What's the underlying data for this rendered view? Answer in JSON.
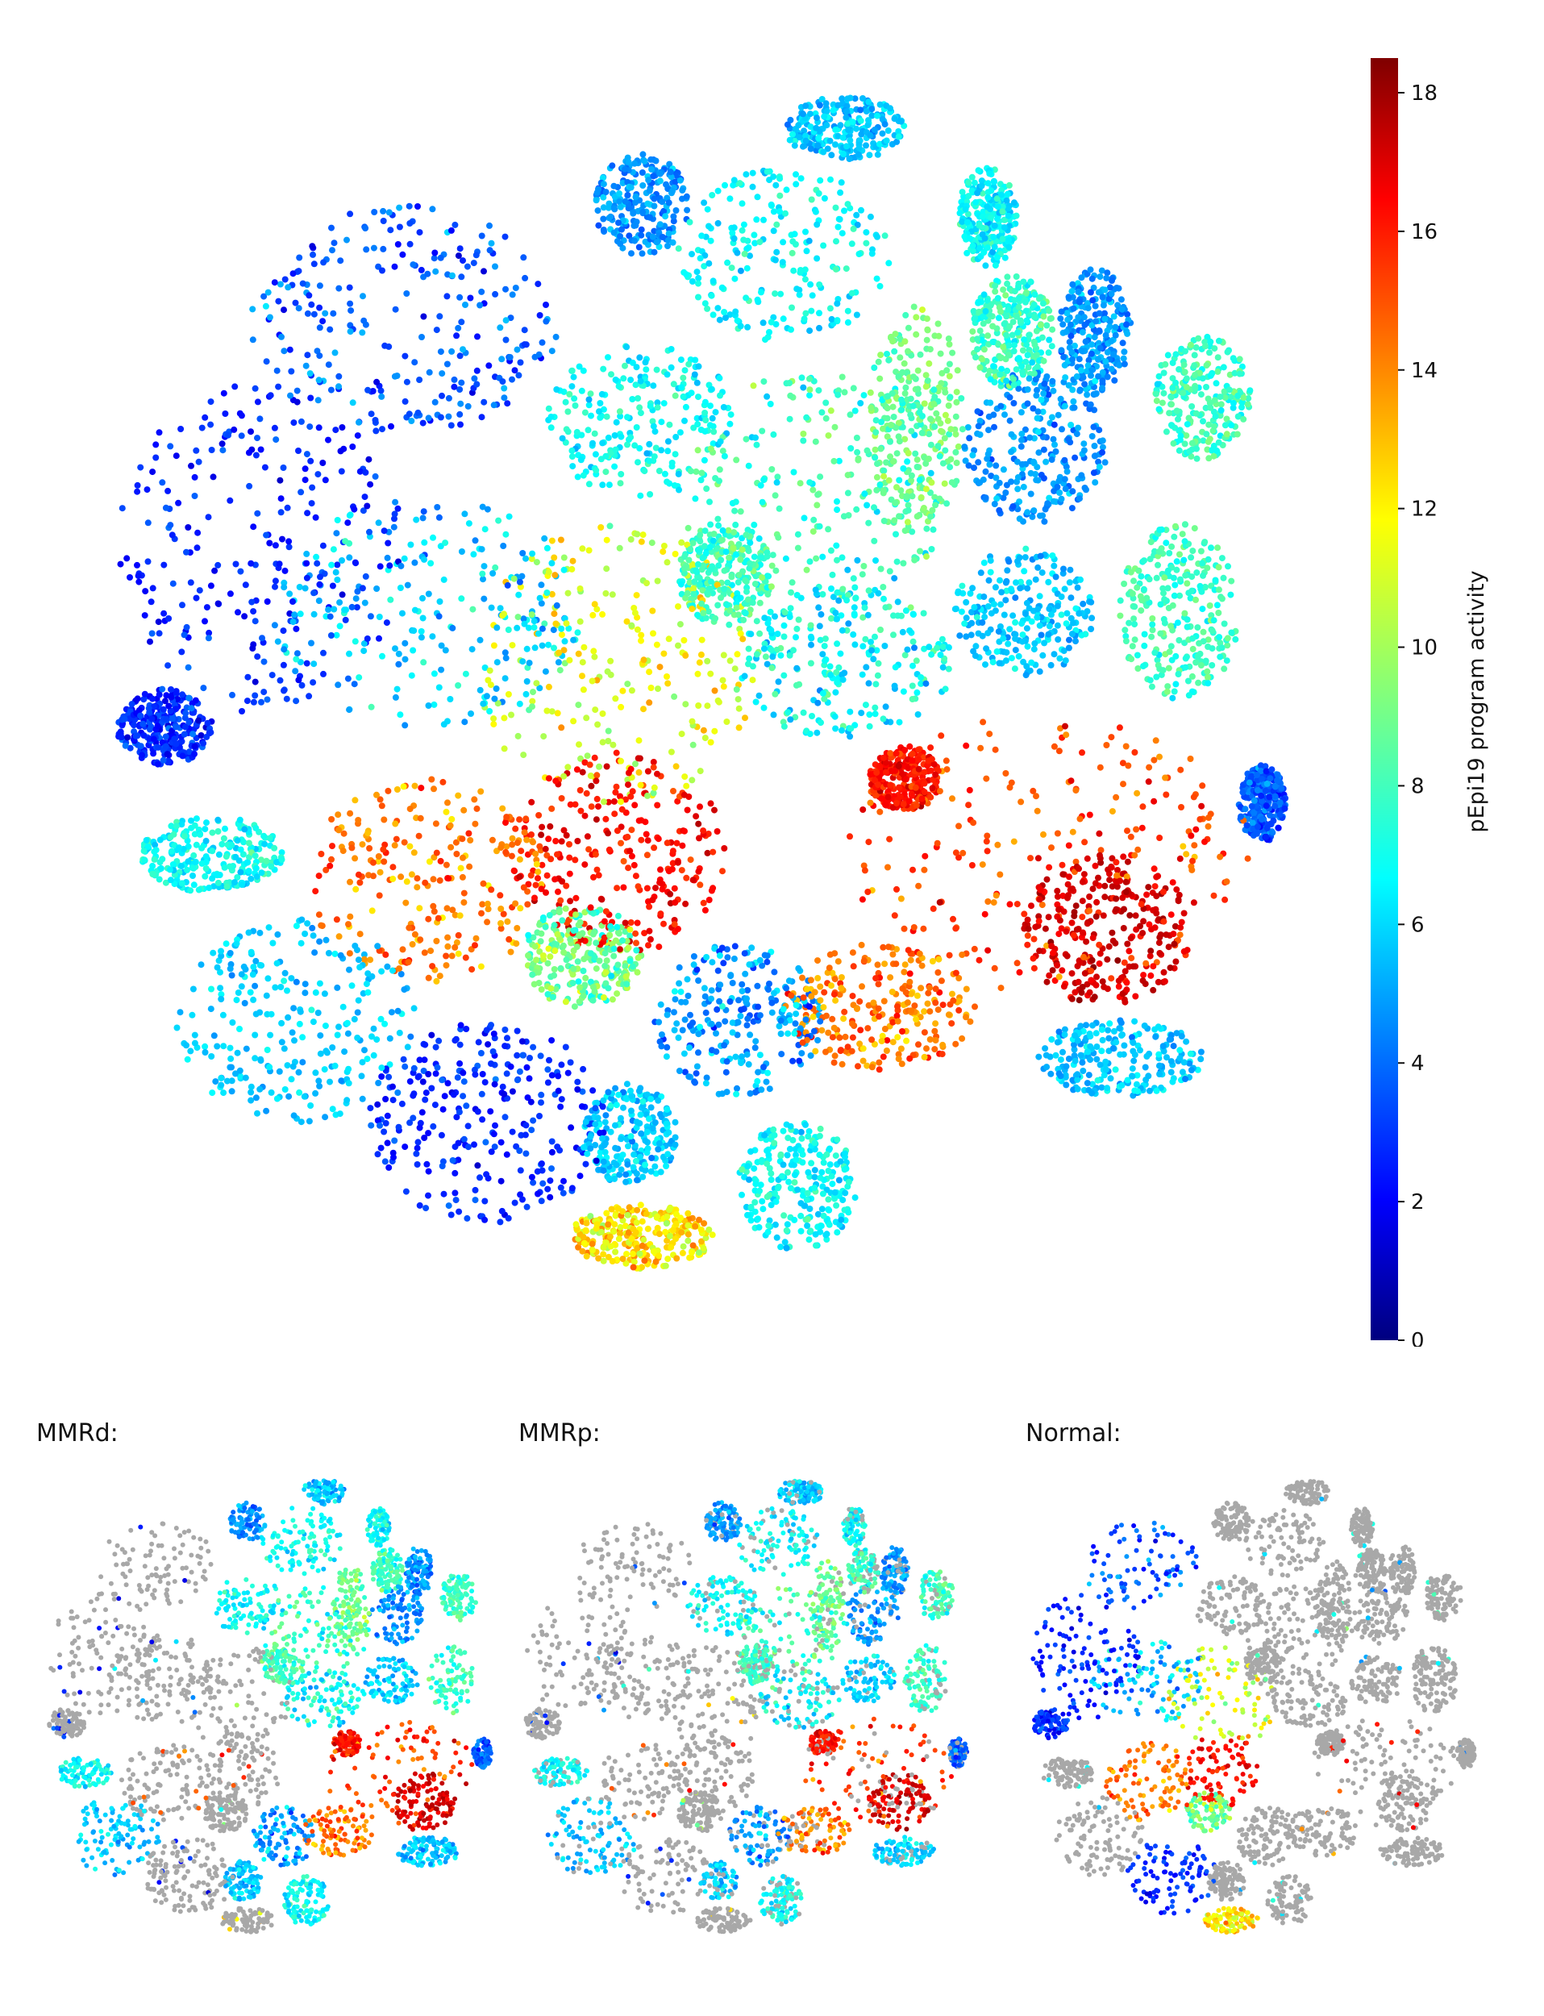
{
  "chart_data": [
    {
      "type": "scatter",
      "panel": "main",
      "title": "",
      "color_scale": {
        "label": "pEpi19 program activity",
        "colormap": "jet",
        "range": [
          0,
          18.5
        ],
        "ticks": [
          0,
          2,
          4,
          6,
          8,
          10,
          12,
          14,
          16,
          18
        ]
      },
      "background_color": "#a8a8a8"
    },
    {
      "type": "scatter",
      "panel": "sub",
      "title": "MMRd:"
    },
    {
      "type": "scatter",
      "panel": "sub",
      "title": "MMRp:"
    },
    {
      "type": "scatter",
      "panel": "sub",
      "title": "Normal:"
    }
  ]
}
